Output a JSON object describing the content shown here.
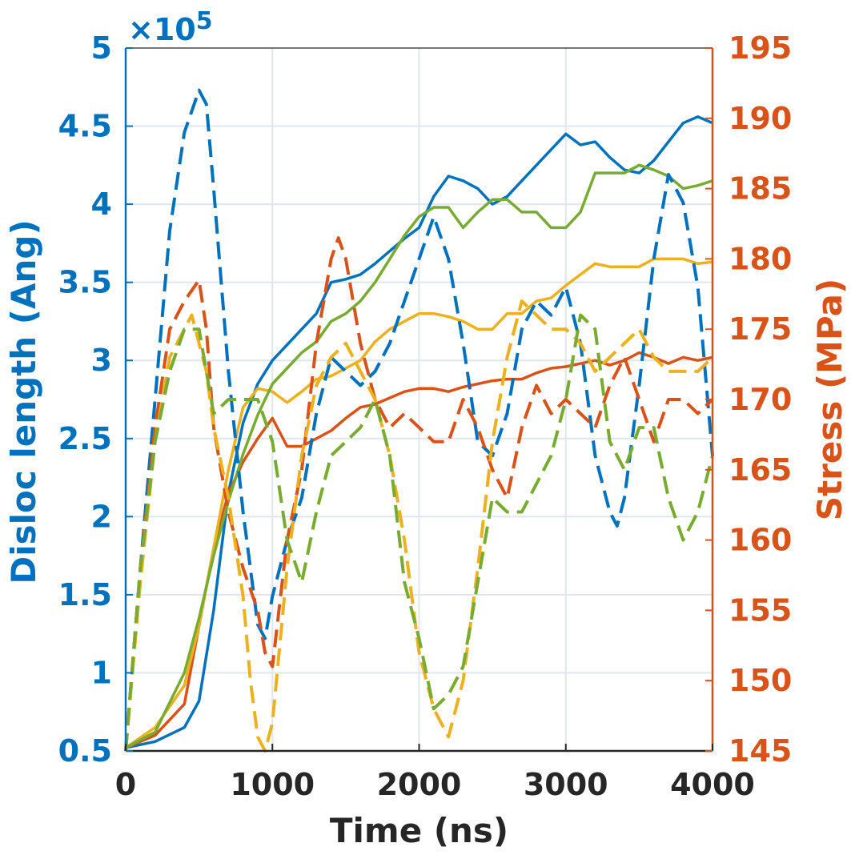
{
  "chart_data": {
    "type": "line",
    "xlabel": "Time (ns)",
    "ylabel_left": "Disloc length (Ang)",
    "ylabel_right": "Stress (MPa)",
    "left_multiplier_label": "×10",
    "left_multiplier_exp": "5",
    "xlim": [
      0,
      4000
    ],
    "ylim_left": [
      0.5,
      5
    ],
    "ylim_right": [
      145,
      195
    ],
    "x_ticks": [
      0,
      1000,
      2000,
      3000,
      4000
    ],
    "x_tick_labels": [
      "0",
      "1000",
      "2000",
      "3000",
      "4000"
    ],
    "left_ticks": [
      0.5,
      1,
      1.5,
      2,
      2.5,
      3,
      3.5,
      4,
      4.5,
      5
    ],
    "left_tick_labels": [
      "0.5",
      "1",
      "1.5",
      "2",
      "2.5",
      "3",
      "3.5",
      "4",
      "4.5",
      "5"
    ],
    "right_ticks": [
      145,
      150,
      155,
      160,
      165,
      170,
      175,
      180,
      185,
      190,
      195
    ],
    "right_tick_labels": [
      "145",
      "150",
      "155",
      "160",
      "165",
      "170",
      "175",
      "180",
      "185",
      "190",
      "195"
    ],
    "grid": true,
    "colors": {
      "left_axis": "#0072BD",
      "right_axis": "#D95319",
      "x_axis": "#262626",
      "grid": "#dfe6ee"
    },
    "series": [
      {
        "axis": "left",
        "style": "solid",
        "color": "#0072BD",
        "x": [
          0,
          200,
          400,
          500,
          600,
          700,
          800,
          900,
          1000,
          1100,
          1200,
          1300,
          1400,
          1500,
          1600,
          1700,
          1800,
          1900,
          2000,
          2100,
          2200,
          2300,
          2400,
          2500,
          2600,
          2700,
          2800,
          2900,
          3000,
          3100,
          3200,
          3300,
          3400,
          3500,
          3600,
          3700,
          3800,
          3900,
          4000
        ],
        "y": [
          0.52,
          0.56,
          0.65,
          0.82,
          1.4,
          2.15,
          2.6,
          2.85,
          3.0,
          3.1,
          3.2,
          3.3,
          3.5,
          3.52,
          3.55,
          3.62,
          3.7,
          3.78,
          3.85,
          4.05,
          4.18,
          4.15,
          4.1,
          4.0,
          4.05,
          4.15,
          4.25,
          4.35,
          4.45,
          4.38,
          4.4,
          4.3,
          4.22,
          4.2,
          4.28,
          4.4,
          4.52,
          4.56,
          4.52
        ]
      },
      {
        "axis": "left",
        "style": "solid",
        "color": "#D95319",
        "x": [
          0,
          200,
          400,
          500,
          600,
          700,
          800,
          900,
          1000,
          1100,
          1200,
          1300,
          1400,
          1500,
          1600,
          1700,
          1800,
          1900,
          2000,
          2100,
          2200,
          2300,
          2400,
          2500,
          2600,
          2700,
          2800,
          2900,
          3000,
          3100,
          3200,
          3300,
          3400,
          3500,
          3600,
          3700,
          3800,
          3900,
          4000
        ],
        "y": [
          0.52,
          0.6,
          0.8,
          1.3,
          1.8,
          2.15,
          2.35,
          2.5,
          2.63,
          2.45,
          2.45,
          2.5,
          2.55,
          2.63,
          2.7,
          2.72,
          2.76,
          2.8,
          2.82,
          2.82,
          2.8,
          2.83,
          2.85,
          2.87,
          2.88,
          2.88,
          2.92,
          2.95,
          2.96,
          2.98,
          3.0,
          2.97,
          3.0,
          3.05,
          3.02,
          2.98,
          3.02,
          3.0,
          3.02
        ]
      },
      {
        "axis": "left",
        "style": "solid",
        "color": "#EDB120",
        "x": [
          0,
          200,
          400,
          500,
          600,
          700,
          800,
          900,
          1000,
          1100,
          1200,
          1300,
          1400,
          1500,
          1600,
          1700,
          1800,
          1900,
          2000,
          2100,
          2200,
          2300,
          2400,
          2500,
          2600,
          2700,
          2800,
          2900,
          3000,
          3100,
          3200,
          3300,
          3400,
          3500,
          3600,
          3700,
          3800,
          3900,
          4000
        ],
        "y": [
          0.52,
          0.65,
          0.92,
          1.3,
          1.8,
          2.3,
          2.7,
          2.82,
          2.8,
          2.73,
          2.8,
          2.88,
          2.9,
          2.95,
          3.0,
          3.12,
          3.2,
          3.25,
          3.3,
          3.3,
          3.28,
          3.25,
          3.2,
          3.2,
          3.3,
          3.3,
          3.38,
          3.4,
          3.48,
          3.55,
          3.62,
          3.6,
          3.6,
          3.6,
          3.65,
          3.65,
          3.65,
          3.62,
          3.63
        ]
      },
      {
        "axis": "left",
        "style": "solid",
        "color": "#77AC30",
        "x": [
          0,
          200,
          400,
          500,
          600,
          700,
          800,
          900,
          1000,
          1100,
          1200,
          1300,
          1400,
          1500,
          1600,
          1700,
          1800,
          1900,
          2000,
          2100,
          2200,
          2300,
          2400,
          2500,
          2600,
          2700,
          2800,
          2900,
          3000,
          3100,
          3200,
          3300,
          3400,
          3500,
          3600,
          3700,
          3800,
          3900,
          4000
        ],
        "y": [
          0.52,
          0.62,
          1.0,
          1.35,
          1.75,
          2.1,
          2.4,
          2.65,
          2.85,
          2.95,
          3.05,
          3.12,
          3.25,
          3.3,
          3.38,
          3.5,
          3.65,
          3.8,
          3.92,
          3.98,
          3.98,
          3.85,
          3.95,
          4.03,
          4.03,
          3.95,
          3.95,
          3.85,
          3.85,
          3.95,
          4.2,
          4.2,
          4.2,
          4.25,
          4.22,
          4.18,
          4.1,
          4.12,
          4.15
        ]
      },
      {
        "axis": "right",
        "style": "dashed",
        "color": "#0072BD",
        "x": [
          0,
          100,
          200,
          300,
          400,
          500,
          550,
          600,
          700,
          800,
          900,
          950,
          1000,
          1100,
          1200,
          1300,
          1400,
          1500,
          1600,
          1700,
          1800,
          1900,
          2000,
          2100,
          2200,
          2300,
          2400,
          2500,
          2600,
          2700,
          2800,
          2900,
          3000,
          3100,
          3200,
          3300,
          3350,
          3400,
          3500,
          3600,
          3700,
          3800,
          3900,
          4000
        ],
        "y": [
          145,
          158,
          170,
          182,
          189,
          192,
          191,
          185,
          172,
          162,
          154,
          153,
          156,
          160,
          163,
          169,
          173,
          172,
          171,
          172,
          174,
          177,
          180,
          183,
          180,
          174,
          167,
          166,
          169,
          175,
          177,
          176,
          178,
          174,
          166,
          162,
          161,
          163,
          171,
          180,
          186,
          184,
          178,
          166
        ]
      },
      {
        "axis": "right",
        "style": "dashed",
        "color": "#D95319",
        "x": [
          0,
          100,
          200,
          300,
          400,
          500,
          550,
          600,
          700,
          800,
          900,
          950,
          1000,
          1100,
          1200,
          1300,
          1400,
          1450,
          1500,
          1600,
          1700,
          1800,
          1900,
          2000,
          2100,
          2200,
          2300,
          2400,
          2500,
          2600,
          2700,
          2800,
          2900,
          3000,
          3100,
          3200,
          3300,
          3400,
          3500,
          3600,
          3700,
          3800,
          3900,
          4000
        ],
        "y": [
          145,
          158,
          168,
          175,
          177,
          178.5,
          175,
          168,
          162,
          158,
          155,
          152,
          151,
          160,
          165,
          174,
          180,
          181.5,
          180,
          174,
          170,
          168,
          169,
          168,
          167,
          167,
          170,
          168,
          165,
          163,
          168,
          171,
          169,
          170,
          169,
          168,
          171,
          173,
          170,
          167,
          170,
          170,
          169,
          170
        ]
      },
      {
        "axis": "right",
        "style": "dashed",
        "color": "#EDB120",
        "x": [
          0,
          100,
          200,
          300,
          400,
          450,
          500,
          550,
          600,
          700,
          800,
          850,
          900,
          950,
          1000,
          1100,
          1200,
          1300,
          1400,
          1500,
          1600,
          1700,
          1800,
          1900,
          2000,
          2100,
          2200,
          2300,
          2400,
          2500,
          2600,
          2700,
          2800,
          2900,
          3000,
          3100,
          3200,
          3300,
          3400,
          3500,
          3600,
          3700,
          3800,
          3900,
          4000
        ],
        "y": [
          145,
          157,
          167,
          173,
          175,
          176,
          174,
          172,
          168,
          163,
          156,
          150,
          146,
          145,
          147,
          158,
          166,
          171,
          173,
          174,
          172,
          170,
          166,
          160,
          152,
          148,
          146,
          150,
          158,
          167,
          173,
          177,
          176,
          175,
          175,
          174,
          172,
          173,
          174,
          175,
          173,
          172,
          172,
          172,
          173
        ]
      },
      {
        "axis": "right",
        "style": "dashed",
        "color": "#77AC30",
        "x": [
          0,
          100,
          200,
          300,
          400,
          500,
          600,
          700,
          800,
          900,
          1000,
          1100,
          1200,
          1300,
          1400,
          1500,
          1600,
          1700,
          1800,
          1900,
          2000,
          2100,
          2200,
          2300,
          2400,
          2500,
          2600,
          2700,
          2800,
          2900,
          3000,
          3100,
          3200,
          3300,
          3400,
          3500,
          3600,
          3700,
          3800,
          3900,
          4000
        ],
        "y": [
          145,
          158,
          167,
          172,
          175,
          175,
          169,
          170,
          170,
          170,
          167,
          160,
          157,
          162,
          166,
          167,
          168,
          170,
          166,
          157,
          153,
          148,
          149,
          151,
          157,
          163,
          162,
          162,
          164,
          166,
          170,
          176,
          175,
          167,
          165,
          168,
          168,
          163,
          160,
          162,
          166
        ]
      }
    ]
  }
}
